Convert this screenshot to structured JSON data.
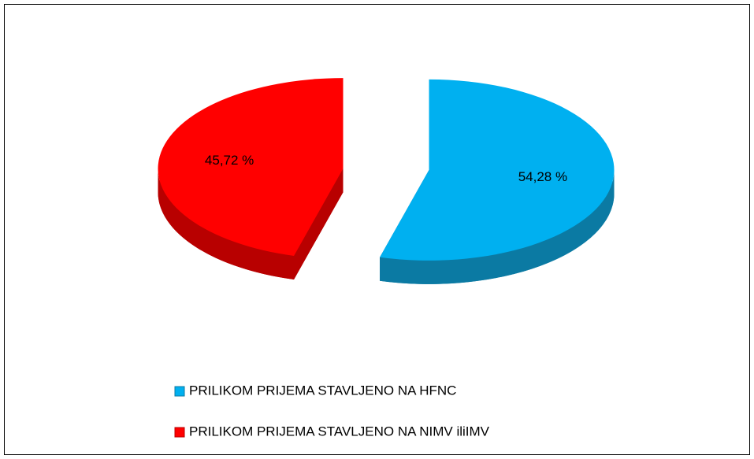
{
  "chart_data": {
    "type": "pie",
    "categories": [
      "PRILIKOM PRIJEMA STAVLJENO NA HFNC",
      "PRILIKOM PRIJEMA STAVLJENO NA NIMV iliIMV"
    ],
    "values": [
      54.28,
      45.72
    ],
    "value_labels": [
      "54,28 %",
      "45,72 %"
    ],
    "colors": [
      "#00b0f0",
      "#ff0000"
    ],
    "side_colors": [
      "#0b7aa3",
      "#b80000"
    ],
    "legend": "bottom"
  }
}
